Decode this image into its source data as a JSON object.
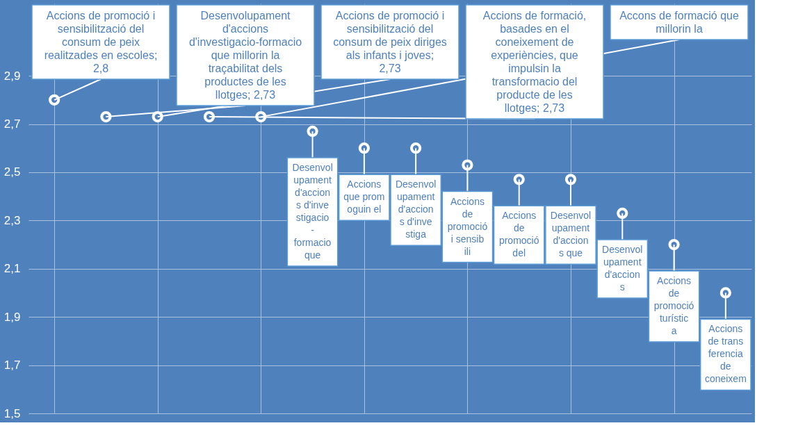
{
  "chart_data": {
    "type": "scatter",
    "categories": [
      null,
      null,
      null,
      null,
      null,
      null,
      null,
      null,
      null,
      null,
      null,
      null,
      null,
      null
    ],
    "values": [
      2.8,
      2.73,
      2.73,
      2.73,
      2.73,
      2.67,
      2.6,
      2.6,
      2.53,
      2.47,
      2.47,
      2.33,
      2.2,
      2.0
    ],
    "color": "#4f81bd",
    "marker": "circle",
    "grid": true,
    "tick_labels": "y",
    "ylim": [
      1.5,
      3.2
    ],
    "yticks": [
      {
        "value": 1.5,
        "label": "1,5"
      },
      {
        "value": 1.7,
        "label": "1,7"
      },
      {
        "value": 1.9,
        "label": "1,9"
      },
      {
        "value": 2.1,
        "label": "2,1"
      },
      {
        "value": 2.3,
        "label": "2,3"
      },
      {
        "value": 2.5,
        "label": "2,5"
      },
      {
        "value": 2.7,
        "label": "2,7"
      },
      {
        "value": 2.9,
        "label": "2,9"
      }
    ],
    "annotations": [
      "Accions de promoció i sensibilització del consum de peix realitzades en escoles; 2,8",
      "Desenvolupament d'accions d'investigacio-formacio que millorin la traçabilitat dels productes de les llotges; 2,73",
      "Accions de promoció i sensibilització del consum de peix diriges als infants i joves; 2,73",
      "Accions de formació, basades en el coneixement de experiències, que impulsin la transformacio del producte de les llotges; 2,73",
      "Accons de formació que millorin la",
      "Desenvolupament d'accions d'investigacio-formacio que",
      "Accions que promoguin el",
      "Desenvolupament d'accions d'investiga",
      "Accions de promoció i sensibili",
      "Accions de promoció del",
      "Desenvolupament d'accions que",
      "Desenvolupament d'accions",
      "Accions de promoció turística",
      "Accions de transferencia de coneixem"
    ]
  }
}
